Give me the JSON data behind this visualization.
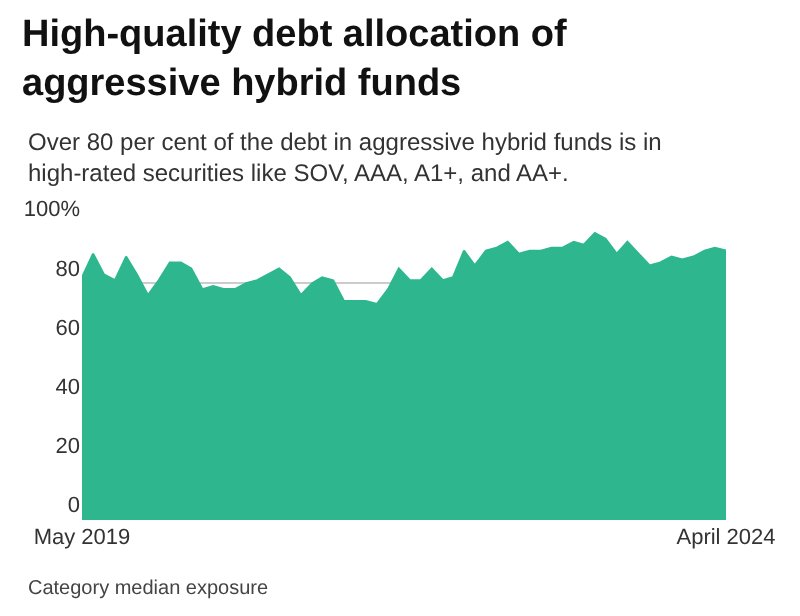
{
  "chart_data": {
    "type": "area",
    "title": "High-quality debt allocation of aggressive hybrid funds",
    "subtitle": "Over 80 per cent of the debt in aggressive hybrid funds is in high-rated securities like SOV, AAA, A1+, and AA+.",
    "x": [
      "2019-05",
      "2019-06",
      "2019-07",
      "2019-08",
      "2019-09",
      "2019-10",
      "2019-11",
      "2019-12",
      "2020-01",
      "2020-02",
      "2020-03",
      "2020-04",
      "2020-05",
      "2020-06",
      "2020-07",
      "2020-08",
      "2020-09",
      "2020-10",
      "2020-11",
      "2020-12",
      "2021-01",
      "2021-02",
      "2021-03",
      "2021-04",
      "2021-05",
      "2021-06",
      "2021-07",
      "2021-08",
      "2021-09",
      "2021-10",
      "2021-11",
      "2021-12",
      "2022-01",
      "2022-02",
      "2022-03",
      "2022-04",
      "2022-05",
      "2022-06",
      "2022-07",
      "2022-08",
      "2022-09",
      "2022-10",
      "2022-11",
      "2022-12",
      "2023-01",
      "2023-02",
      "2023-03",
      "2023-04",
      "2023-05",
      "2023-06",
      "2023-07",
      "2023-08",
      "2023-09",
      "2023-10",
      "2023-11",
      "2023-12",
      "2024-01",
      "2024-02",
      "2024-03",
      "2024-04"
    ],
    "series": [
      {
        "color": "#2eb78f",
        "values": [
          82,
          90,
          83,
          81,
          89,
          83,
          76,
          81,
          87,
          87,
          85,
          78,
          79,
          78,
          78,
          80,
          81,
          83,
          85,
          82,
          76,
          80,
          82,
          81,
          74,
          74,
          74,
          73,
          78,
          85,
          81,
          81,
          85,
          81,
          82,
          91,
          86,
          91,
          92,
          94,
          90,
          91,
          91,
          92,
          92,
          94,
          93,
          97,
          95,
          90,
          94,
          90,
          86,
          87,
          89,
          88,
          89,
          91,
          92,
          91
        ]
      }
    ],
    "xlim": [
      "2019-05",
      "2024-04"
    ],
    "xticks": [
      {
        "value": "2019-05",
        "label": "May 2019"
      },
      {
        "value": "2024-04",
        "label": "April 2024"
      }
    ],
    "ylim": [
      0,
      100
    ],
    "yticks": [
      0,
      20,
      40,
      60,
      80,
      {
        "value": 100,
        "label": "100%"
      }
    ],
    "grid": "y",
    "annotations": [
      "Category median exposure"
    ]
  }
}
